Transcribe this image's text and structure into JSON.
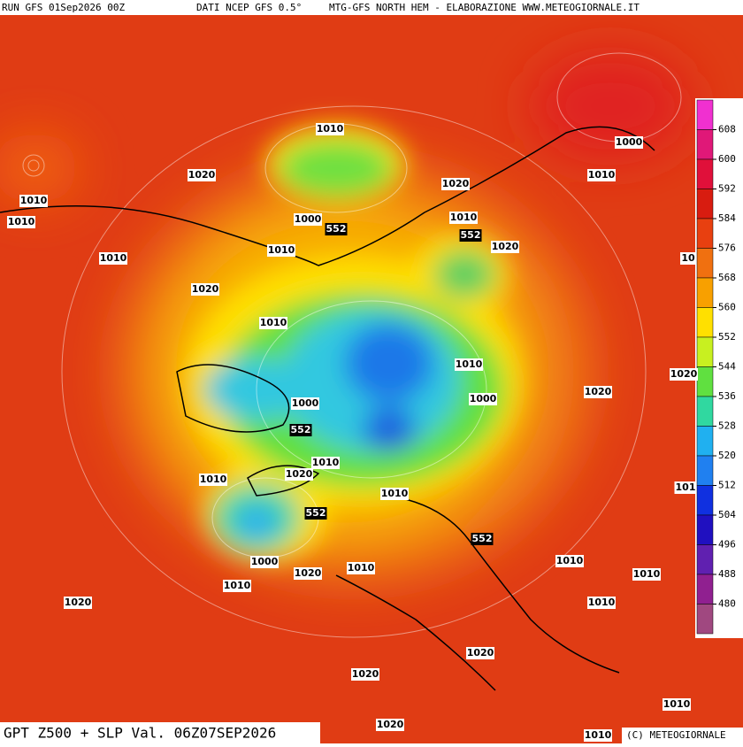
{
  "header": {
    "run": "RUN GFS 01Sep2026 00Z",
    "source": "DATI NCEP GFS 0.5°",
    "credit": "MTG-GFS NORTH HEM - ELABORAZIONE WWW.METEOGIORNALE.IT"
  },
  "footer": {
    "title": "GPT Z500 + SLP Val. 06Z07SEP2026",
    "copyright": "(C) METEOGIORNALE"
  },
  "legend": {
    "ticks": [
      608,
      600,
      592,
      584,
      576,
      568,
      560,
      552,
      544,
      536,
      528,
      520,
      512,
      504,
      496,
      488,
      480
    ],
    "colors": [
      "#f030d0",
      "#e01878",
      "#e0103a",
      "#d81c10",
      "#e84010",
      "#f07010",
      "#f8a000",
      "#ffe000",
      "#c8f020",
      "#60e040",
      "#30d8a0",
      "#20b0f0",
      "#2080f0",
      "#1030e0",
      "#2010c0",
      "#6020b0",
      "#902090",
      "#a04880"
    ]
  },
  "contour_labels": [
    1010,
    1000,
    1020,
    1020,
    1010,
    1010,
    1010,
    1000,
    552,
    1010,
    552,
    1020,
    1010,
    1010,
    10,
    1020,
    1010,
    1010,
    1020,
    1020,
    1000,
    1000,
    552,
    1010,
    1020,
    1010,
    101,
    1010,
    552,
    552,
    1000,
    1020,
    1010,
    1010,
    1010,
    1010,
    1010,
    1020,
    1020,
    1020,
    1010,
    1020,
    1010
  ]
}
